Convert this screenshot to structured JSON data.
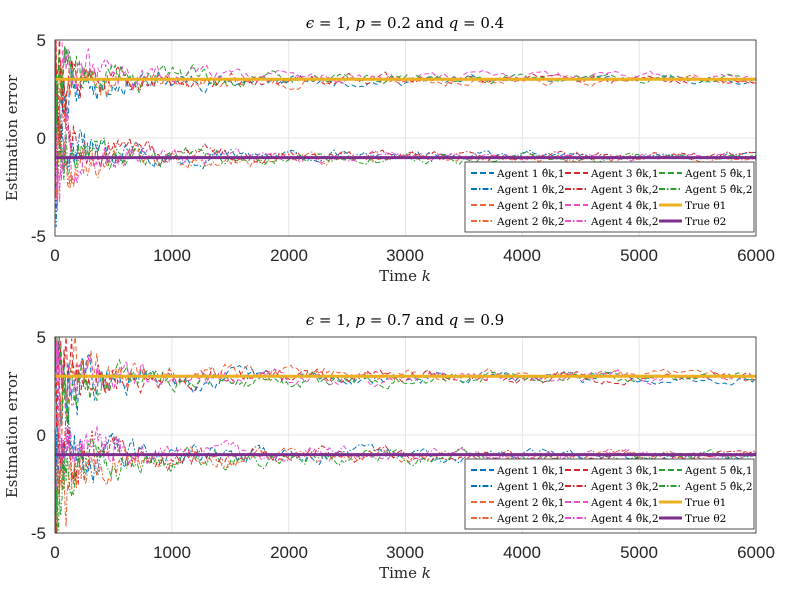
{
  "chart_data": [
    {
      "type": "line",
      "title": "ϵ = 1, p = 0.2 and q = 0.4",
      "title_parts": {
        "eps": "ϵ",
        "eps_val": " = 1, ",
        "p": "p",
        "p_val": " = 0.2 and ",
        "q": "q",
        "q_val": " = 0.4"
      },
      "xlabel": "Time",
      "xlabel_var": "k",
      "ylabel": "Estimation error",
      "xlim": [
        0,
        6000
      ],
      "ylim": [
        -5,
        5
      ],
      "xticks": [
        0,
        1000,
        2000,
        3000,
        4000,
        5000,
        6000
      ],
      "yticks": [
        5,
        0,
        -5
      ],
      "grid": true,
      "legend_position": "bottom-right",
      "legend": [
        {
          "label": "Agent 1 θ̂k,1",
          "color": "#0072BD",
          "style": "dashed"
        },
        {
          "label": "Agent 1 θ̂k,2",
          "color": "#0072BD",
          "style": "dashdot"
        },
        {
          "label": "Agent 2 θ̂k,1",
          "color": "#EE6633",
          "style": "dashed"
        },
        {
          "label": "Agent 2 θ̂k,2",
          "color": "#EE6633",
          "style": "dashdot"
        },
        {
          "label": "Agent 3 θ̂k,1",
          "color": "#D62728",
          "style": "dashed"
        },
        {
          "label": "Agent 3 θ̂k,2",
          "color": "#D62728",
          "style": "dashdot"
        },
        {
          "label": "Agent 4 θ̂k,1",
          "color": "#E84FD0",
          "style": "dashed"
        },
        {
          "label": "Agent 4 θ̂k,2",
          "color": "#E84FD0",
          "style": "dashdot"
        },
        {
          "label": "Agent 5 θ̂k,1",
          "color": "#2CA02C",
          "style": "dashed"
        },
        {
          "label": "Agent 5 θ̂k,2",
          "color": "#2CA02C",
          "style": "dashdot"
        },
        {
          "label": "True θ1",
          "color": "#EDB120",
          "style": "solid"
        },
        {
          "label": "True θ2",
          "color": "#7E2F8E",
          "style": "solid"
        }
      ],
      "true_values": {
        "theta1": 3,
        "theta2": -1
      },
      "noise": {
        "start": 4.0,
        "decay": 1.6,
        "floor": 0.1,
        "seed": 11
      }
    },
    {
      "type": "line",
      "title": "ϵ = 1, p = 0.7 and q = 0.9",
      "title_parts": {
        "eps": "ϵ",
        "eps_val": " = 1, ",
        "p": "p",
        "p_val": " = 0.7 and ",
        "q": "q",
        "q_val": " = 0.9"
      },
      "xlabel": "Time",
      "xlabel_var": "k",
      "ylabel": "Estimation error",
      "xlim": [
        0,
        6000
      ],
      "ylim": [
        -5,
        5
      ],
      "xticks": [
        0,
        1000,
        2000,
        3000,
        4000,
        5000,
        6000
      ],
      "yticks": [
        5,
        0,
        -5
      ],
      "grid": true,
      "legend_position": "bottom-right",
      "legend": [
        {
          "label": "Agent 1 θ̂k,1",
          "color": "#0072BD",
          "style": "dashed"
        },
        {
          "label": "Agent 1 θ̂k,2",
          "color": "#0072BD",
          "style": "dashdot"
        },
        {
          "label": "Agent 2 θ̂k,1",
          "color": "#EE6633",
          "style": "dashed"
        },
        {
          "label": "Agent 2 θ̂k,2",
          "color": "#EE6633",
          "style": "dashdot"
        },
        {
          "label": "Agent 3 θ̂k,1",
          "color": "#D62728",
          "style": "dashed"
        },
        {
          "label": "Agent 3 θ̂k,2",
          "color": "#D62728",
          "style": "dashdot"
        },
        {
          "label": "Agent 4 θ̂k,1",
          "color": "#E84FD0",
          "style": "dashed"
        },
        {
          "label": "Agent 4 θ̂k,2",
          "color": "#E84FD0",
          "style": "dashdot"
        },
        {
          "label": "Agent 5 θ̂k,1",
          "color": "#2CA02C",
          "style": "dashed"
        },
        {
          "label": "Agent 5 θ̂k,2",
          "color": "#2CA02C",
          "style": "dashdot"
        },
        {
          "label": "True θ1",
          "color": "#EDB120",
          "style": "solid"
        },
        {
          "label": "True θ2",
          "color": "#7E2F8E",
          "style": "solid"
        }
      ],
      "true_values": {
        "theta1": 3,
        "theta2": -1
      },
      "noise": {
        "start": 4.5,
        "decay": 1.5,
        "floor": 0.12,
        "seed": 29
      }
    }
  ]
}
